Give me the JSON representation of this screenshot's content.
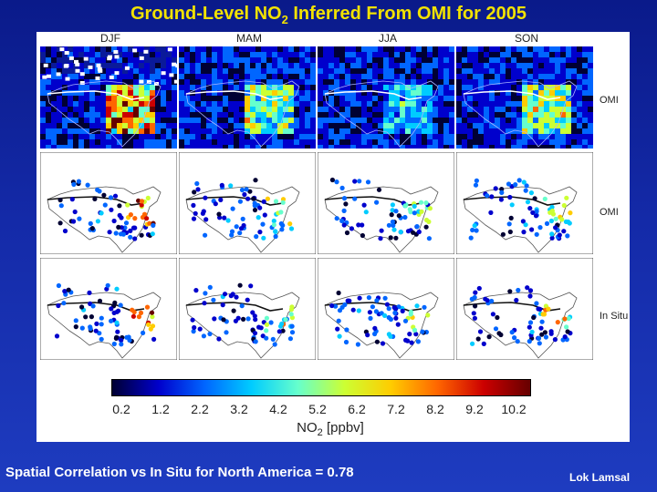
{
  "title": {
    "main": "Ground-Level NO",
    "sub": "2",
    "rest": " Inferred From OMI for 2005"
  },
  "seasons": [
    "DJF",
    "MAM",
    "JJA",
    "SON"
  ],
  "row_labels": [
    "OMI",
    "OMI",
    "In Situ"
  ],
  "colorbar": {
    "ticks": [
      "0.2",
      "1.2",
      "2.2",
      "3.2",
      "4.2",
      "5.2",
      "6.2",
      "7.2",
      "8.2",
      "9.2",
      "10.2"
    ],
    "label_main": "NO",
    "label_sub": "2",
    "label_unit": " [ppbv]",
    "colors": [
      "#000033",
      "#0000cc",
      "#0066ff",
      "#00ccff",
      "#66ffcc",
      "#ccff33",
      "#ffcc00",
      "#ff6600",
      "#cc0000",
      "#660000"
    ]
  },
  "footer": {
    "text": "Spatial Correlation vs In Situ for North America =  0.78"
  },
  "author": "Lok Lamsal",
  "map_intensity": {
    "omi_grid": [
      0.9,
      0.55,
      0.3,
      0.55
    ],
    "omi_sites": [
      0.85,
      0.45,
      0.35,
      0.5
    ],
    "insitu": [
      0.85,
      0.5,
      0.4,
      0.6
    ]
  }
}
